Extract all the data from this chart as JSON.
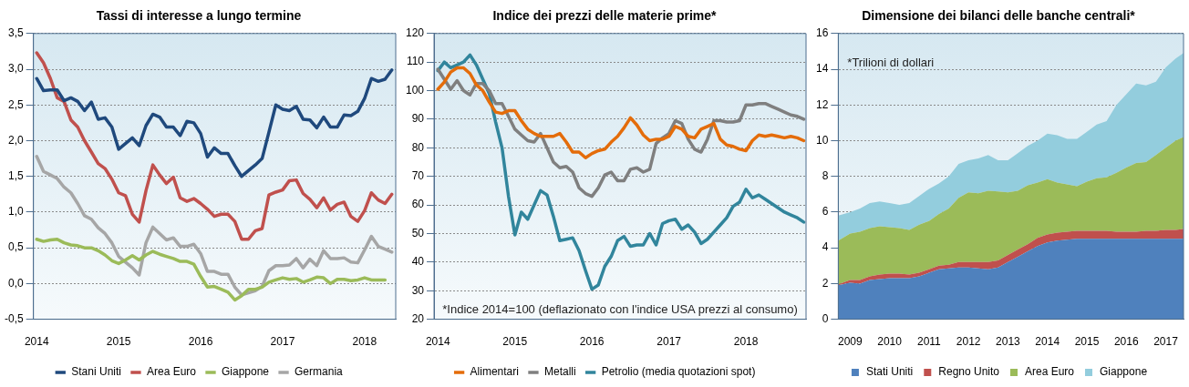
{
  "chart_data": [
    {
      "type": "line",
      "title": "Tassi di interesse a lungo termine",
      "legend": "bottom",
      "grid": "y",
      "xlim": [
        2013.96,
        2018.38
      ],
      "xticks": [
        2014,
        2015,
        2016,
        2017,
        2018
      ],
      "ylim": [
        -0.5,
        3.5
      ],
      "yticks": [
        {
          "value": -0.5,
          "label": "-0,5"
        },
        {
          "value": 0,
          "label": "0,0"
        },
        {
          "value": 0.5,
          "label": "0,5"
        },
        {
          "value": 1,
          "label": "1,0"
        },
        {
          "value": 1.5,
          "label": "1,5"
        },
        {
          "value": 2,
          "label": "2,0"
        },
        {
          "value": 2.5,
          "label": "2,5"
        },
        {
          "value": 3,
          "label": "3,0"
        },
        {
          "value": 3.5,
          "label": "3,5"
        }
      ],
      "x": [
        2014,
        2014.083,
        2014.167,
        2014.25,
        2014.333,
        2014.417,
        2014.5,
        2014.583,
        2014.667,
        2014.75,
        2014.833,
        2014.917,
        2015,
        2015.083,
        2015.167,
        2015.25,
        2015.333,
        2015.417,
        2015.5,
        2015.583,
        2015.667,
        2015.75,
        2015.833,
        2015.917,
        2016,
        2016.083,
        2016.167,
        2016.25,
        2016.333,
        2016.417,
        2016.5,
        2016.583,
        2016.667,
        2016.75,
        2016.833,
        2016.917,
        2017,
        2017.083,
        2017.167,
        2017.25,
        2017.333,
        2017.417,
        2017.5,
        2017.583,
        2017.667,
        2017.75,
        2017.833,
        2017.917,
        2018,
        2018.083,
        2018.167,
        2018.25,
        2018.333
      ],
      "series": [
        {
          "name": "Stani Uniti",
          "color": "#1f497d",
          "values": [
            2.87,
            2.7,
            2.71,
            2.71,
            2.56,
            2.6,
            2.55,
            2.42,
            2.54,
            2.3,
            2.32,
            2.19,
            1.88,
            1.96,
            2.04,
            1.93,
            2.21,
            2.37,
            2.33,
            2.19,
            2.19,
            2.07,
            2.27,
            2.25,
            2.1,
            1.77,
            1.9,
            1.82,
            1.82,
            1.65,
            1.5,
            1.58,
            1.66,
            1.75,
            2.12,
            2.5,
            2.44,
            2.42,
            2.48,
            2.3,
            2.29,
            2.18,
            2.33,
            2.19,
            2.19,
            2.36,
            2.35,
            2.41,
            2.59,
            2.87,
            2.83,
            2.86,
            2.99
          ]
        },
        {
          "name": "Area Euro",
          "color": "#c0504d",
          "values": [
            3.23,
            3.09,
            2.87,
            2.6,
            2.55,
            2.29,
            2.19,
            2.0,
            1.84,
            1.68,
            1.61,
            1.46,
            1.27,
            1.23,
            0.97,
            0.86,
            1.3,
            1.66,
            1.52,
            1.4,
            1.49,
            1.2,
            1.15,
            1.19,
            1.12,
            1.04,
            0.94,
            0.97,
            0.97,
            0.87,
            0.62,
            0.62,
            0.74,
            0.77,
            1.24,
            1.28,
            1.31,
            1.44,
            1.45,
            1.26,
            1.18,
            1.06,
            1.2,
            1.03,
            1.11,
            1.14,
            0.94,
            0.87,
            1.02,
            1.27,
            1.17,
            1.12,
            1.25
          ]
        },
        {
          "name": "Giappone",
          "color": "#9bbb59",
          "values": [
            0.62,
            0.59,
            0.61,
            0.62,
            0.57,
            0.54,
            0.53,
            0.5,
            0.5,
            0.46,
            0.4,
            0.32,
            0.28,
            0.33,
            0.39,
            0.33,
            0.4,
            0.45,
            0.41,
            0.38,
            0.35,
            0.31,
            0.31,
            0.27,
            0.1,
            -0.05,
            -0.04,
            -0.08,
            -0.12,
            -0.23,
            -0.17,
            -0.08,
            -0.08,
            -0.05,
            0.02,
            0.05,
            0.08,
            0.06,
            0.07,
            0.02,
            0.05,
            0.09,
            0.08,
            0.0,
            0.06,
            0.06,
            0.04,
            0.05,
            0.08,
            0.05,
            0.05,
            0.05,
            null
          ]
        },
        {
          "name": "Germania",
          "color": "#a6a6a6",
          "values": [
            1.78,
            1.57,
            1.52,
            1.47,
            1.35,
            1.27,
            1.12,
            0.95,
            0.9,
            0.78,
            0.7,
            0.57,
            0.38,
            0.3,
            0.22,
            0.12,
            0.57,
            0.79,
            0.7,
            0.61,
            0.64,
            0.52,
            0.52,
            0.55,
            0.42,
            0.17,
            0.17,
            0.13,
            0.13,
            -0.05,
            -0.16,
            -0.13,
            -0.1,
            -0.04,
            0.18,
            0.25,
            0.25,
            0.26,
            0.35,
            0.22,
            0.34,
            0.25,
            0.46,
            0.35,
            0.35,
            0.36,
            0.3,
            0.29,
            0.47,
            0.66,
            0.52,
            0.48,
            0.44
          ]
        }
      ]
    },
    {
      "type": "line",
      "title": "Indice dei prezzi delle materie prime*",
      "legend": "bottom",
      "grid": "y",
      "annotations": [
        "*Indice 2014=100 (deflazionato con l'indice USA prezzi al consumo)"
      ],
      "xlim": [
        2013.95,
        2018.78
      ],
      "xticks": [
        2014,
        2015,
        2016,
        2017,
        2018
      ],
      "ylim": [
        20,
        120
      ],
      "yticks": [
        20,
        30,
        40,
        50,
        60,
        70,
        80,
        90,
        100,
        110,
        120
      ],
      "x": [
        2014,
        2014.083,
        2014.167,
        2014.25,
        2014.333,
        2014.417,
        2014.5,
        2014.583,
        2014.667,
        2014.75,
        2014.833,
        2014.917,
        2015,
        2015.083,
        2015.167,
        2015.25,
        2015.333,
        2015.417,
        2015.5,
        2015.583,
        2015.667,
        2015.75,
        2015.833,
        2015.917,
        2016,
        2016.083,
        2016.167,
        2016.25,
        2016.333,
        2016.417,
        2016.5,
        2016.583,
        2016.667,
        2016.75,
        2016.833,
        2016.917,
        2017,
        2017.083,
        2017.167,
        2017.25,
        2017.333,
        2017.417,
        2017.5,
        2017.583,
        2017.667,
        2017.75,
        2017.833,
        2017.917,
        2018,
        2018.083,
        2018.167,
        2018.25,
        2018.333,
        2018.417,
        2018.5,
        2018.583,
        2018.667,
        2018.75
      ],
      "series": [
        {
          "name": "Alimentari",
          "color": "#e46c0a",
          "values": [
            100.5,
            103,
            106.5,
            108,
            108,
            106,
            102,
            100,
            96,
            92.5,
            92,
            93,
            93,
            89.5,
            86.5,
            85,
            84,
            84,
            84,
            85,
            82,
            78.5,
            78.5,
            76.5,
            78,
            79,
            79.5,
            82,
            84,
            87,
            90.5,
            88,
            84.5,
            82.5,
            83,
            83,
            84,
            87.5,
            86.5,
            84,
            83.5,
            86.5,
            87.5,
            88.5,
            83,
            81,
            80.5,
            79.5,
            79,
            82.5,
            84.5,
            84,
            84.5,
            84,
            83.5,
            84,
            83.5,
            82.5
          ]
        },
        {
          "name": "Metalli",
          "color": "#7f7f7f",
          "values": [
            107.5,
            104,
            100.5,
            103.5,
            100,
            98.5,
            102.5,
            102.5,
            100,
            95.5,
            95.5,
            91,
            86.5,
            84.5,
            82.5,
            82,
            85,
            80,
            75,
            73,
            73.5,
            71.5,
            66,
            64,
            63,
            66,
            70.5,
            71.5,
            68.5,
            68.5,
            72.5,
            73,
            71.5,
            72.5,
            81.5,
            83.5,
            85,
            89.5,
            88.5,
            83,
            79.5,
            78.5,
            83,
            89.5,
            89.5,
            89,
            89,
            89.5,
            95,
            95,
            95.5,
            95.5,
            94.5,
            93.5,
            92.5,
            91.5,
            91,
            90
          ]
        },
        {
          "name": "Petrolio (media quotazioni spot)",
          "color": "#31859c",
          "values": [
            107,
            110,
            108,
            109,
            110,
            112.5,
            109,
            104,
            99,
            89,
            80,
            63,
            49.5,
            57.5,
            55,
            60,
            65,
            63.5,
            56,
            47.5,
            48,
            48.5,
            44,
            37,
            30.5,
            32,
            38.5,
            42,
            47.5,
            49,
            45.5,
            46,
            46,
            50,
            46,
            53.5,
            54.5,
            55,
            51.5,
            53,
            50.5,
            46.5,
            48,
            50.5,
            53,
            55.5,
            59.5,
            61,
            65.5,
            62.5,
            63.5,
            62,
            60.5,
            59,
            57.5,
            56.5,
            55.5,
            54
          ]
        }
      ]
    },
    {
      "type": "area",
      "title": "Dimensione dei bilanci delle banche centrali*",
      "legend": "bottom",
      "grid": "y",
      "stacked": true,
      "annotations": [
        "*Trilioni di dollari"
      ],
      "xlim": [
        2008.7,
        2017.45
      ],
      "xticks": [
        2009,
        2010,
        2011,
        2012,
        2013,
        2014,
        2015,
        2016,
        2017
      ],
      "ylim": [
        0,
        16
      ],
      "yticks": [
        0,
        2,
        4,
        6,
        8,
        10,
        12,
        14,
        16
      ],
      "x": [
        2008.7,
        2009,
        2009.25,
        2009.5,
        2009.75,
        2010,
        2010.25,
        2010.5,
        2010.75,
        2011,
        2011.25,
        2011.5,
        2011.75,
        2012,
        2012.25,
        2012.5,
        2012.75,
        2013,
        2013.25,
        2013.5,
        2013.75,
        2014,
        2014.25,
        2014.5,
        2014.75,
        2015,
        2015.25,
        2015.5,
        2015.75,
        2016,
        2016.25,
        2016.5,
        2016.75,
        2017,
        2017.25,
        2017.45
      ],
      "series": [
        {
          "name": "Stati Uniti",
          "color": "#4f81bd",
          "values": [
            1.9,
            2.05,
            2.0,
            2.2,
            2.25,
            2.3,
            2.3,
            2.3,
            2.4,
            2.6,
            2.8,
            2.85,
            2.9,
            2.9,
            2.85,
            2.8,
            2.9,
            3.2,
            3.5,
            3.8,
            4.1,
            4.3,
            4.4,
            4.45,
            4.5,
            4.5,
            4.5,
            4.5,
            4.5,
            4.5,
            4.5,
            4.5,
            4.5,
            4.5,
            4.5,
            4.5
          ]
        },
        {
          "name": "Regno Unito",
          "color": "#c0504d",
          "values": [
            0.05,
            0.15,
            0.2,
            0.2,
            0.25,
            0.25,
            0.25,
            0.2,
            0.2,
            0.2,
            0.2,
            0.2,
            0.3,
            0.3,
            0.35,
            0.4,
            0.4,
            0.4,
            0.4,
            0.4,
            0.45,
            0.45,
            0.45,
            0.45,
            0.45,
            0.45,
            0.45,
            0.45,
            0.4,
            0.4,
            0.4,
            0.45,
            0.45,
            0.5,
            0.5,
            0.55
          ]
        },
        {
          "name": "Area Euro",
          "color": "#9bbb59",
          "values": [
            2.45,
            2.6,
            2.7,
            2.7,
            2.7,
            2.6,
            2.55,
            2.5,
            2.7,
            2.7,
            2.9,
            3.15,
            3.6,
            3.9,
            3.85,
            4.0,
            3.85,
            3.5,
            3.3,
            3.3,
            3.1,
            3.1,
            2.8,
            2.65,
            2.5,
            2.75,
            2.95,
            3.0,
            3.3,
            3.6,
            3.85,
            3.85,
            4.25,
            4.6,
            5.0,
            5.15
          ]
        },
        {
          "name": "Giappone",
          "color": "#93cddd",
          "values": [
            1.4,
            1.2,
            1.3,
            1.4,
            1.4,
            1.35,
            1.3,
            1.5,
            1.6,
            1.8,
            1.7,
            1.8,
            1.9,
            1.8,
            1.95,
            2.0,
            1.75,
            1.8,
            2.1,
            2.2,
            2.35,
            2.55,
            2.65,
            2.55,
            2.65,
            2.8,
            3.0,
            3.15,
            3.8,
            4.1,
            4.45,
            4.3,
            4.1,
            4.5,
            4.6,
            4.7
          ]
        }
      ]
    }
  ]
}
